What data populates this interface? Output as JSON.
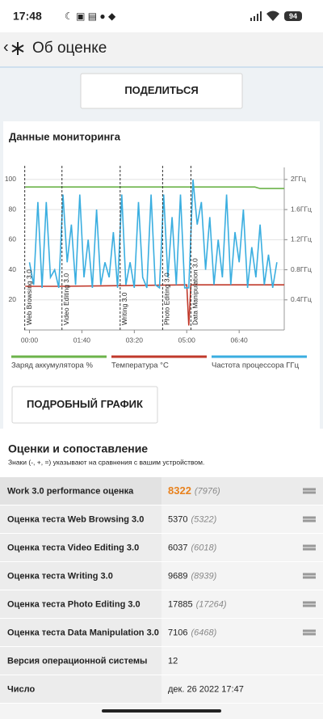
{
  "status_bar": {
    "time": "17:48",
    "battery": "94"
  },
  "header": {
    "back": "‹",
    "title": "Об оценке"
  },
  "share_button": "ПОДЕЛИТЬСЯ",
  "monitoring": {
    "title": "Данные мониторинга",
    "chart": {
      "type": "line",
      "xlim": [
        -10,
        486
      ],
      "xticks": [
        {
          "value": 0,
          "label": "00:00"
        },
        {
          "value": 100,
          "label": "01:40"
        },
        {
          "value": 200,
          "label": "03:20"
        },
        {
          "value": 300,
          "label": "05:00"
        },
        {
          "value": 400,
          "label": "06:40"
        }
      ],
      "ylim": [
        0,
        108
      ],
      "yticks": [
        20,
        40,
        60,
        80,
        100
      ],
      "y2lim": [
        0,
        2.16
      ],
      "y2ticks": [
        {
          "value": 0.4,
          "label": "0.4ГГц"
        },
        {
          "value": 0.8,
          "label": "0.8ГГц"
        },
        {
          "value": 1.2,
          "label": "1.2ГГц"
        },
        {
          "value": 1.6,
          "label": "1.6ГГц"
        },
        {
          "value": 2,
          "label": "2ГГц"
        }
      ],
      "grid": true,
      "markers": [
        {
          "x": -9,
          "label": "Web Browsing 3.0"
        },
        {
          "x": 62,
          "label": "Video Editing 3.0"
        },
        {
          "x": 173,
          "label": "Writing 3.0"
        },
        {
          "x": 254,
          "label": "Photo Editing 3.0"
        },
        {
          "x": 308,
          "label": "Data Manipulation 3.0"
        }
      ],
      "series": [
        {
          "name": "Заряд аккумулятора %",
          "color": "#6cb34a",
          "x": [
            -8,
            430,
            440,
            486
          ],
          "values": [
            95,
            95,
            94,
            94
          ]
        },
        {
          "name": "Температура °C",
          "color": "#c0392b",
          "x": [
            -8,
            60,
            300,
            304,
            308,
            486
          ],
          "values": [
            29,
            29,
            30,
            3,
            30,
            30
          ]
        },
        {
          "name": "Частота процессора ГГц",
          "color": "#3aaee0",
          "axis": "y2",
          "x": [
            0,
            8,
            16,
            24,
            32,
            40,
            48,
            56,
            64,
            72,
            80,
            88,
            96,
            104,
            112,
            120,
            128,
            136,
            144,
            152,
            160,
            168,
            176,
            184,
            192,
            200,
            208,
            216,
            224,
            232,
            240,
            248,
            256,
            264,
            272,
            280,
            288,
            296,
            304,
            312,
            320,
            328,
            336,
            344,
            352,
            360,
            368,
            376,
            384,
            392,
            400,
            408,
            416,
            424,
            432,
            440,
            448,
            456,
            464,
            472
          ],
          "values": [
            0.9,
            0.6,
            1.7,
            0.56,
            1.7,
            0.7,
            0.8,
            0.56,
            1.8,
            0.9,
            1.4,
            0.6,
            1.8,
            0.7,
            1.2,
            0.56,
            1.6,
            0.6,
            0.9,
            0.7,
            1.3,
            0.56,
            1.8,
            0.6,
            0.9,
            0.56,
            1.7,
            0.7,
            0.56,
            1.8,
            0.6,
            0.56,
            1.8,
            0.7,
            1.5,
            0.6,
            1.8,
            0.56,
            0.56,
            2.0,
            1.4,
            1.7,
            0.8,
            1.5,
            0.6,
            1.2,
            0.7,
            1.8,
            0.6,
            1.3,
            0.9,
            1.6,
            0.56,
            1.1,
            0.7,
            1.4,
            0.6,
            1.0,
            0.56,
            0.9
          ]
        }
      ]
    }
  },
  "detail_button": "ПОДРОБНЫЙ ГРАФИК",
  "scores": {
    "title": "Оценки и сопоставление",
    "note": "Знаки (-, +, =) указывают на сравнения с вашим устройством.",
    "rows": [
      {
        "label": "Work 3.0 performance оценка",
        "value": "8322",
        "compare": "(7976)"
      },
      {
        "label": "Оценка теста Web Browsing 3.0",
        "value": "5370",
        "compare": "(5322)"
      },
      {
        "label": "Оценка теста Video Editing 3.0",
        "value": "6037",
        "compare": "(6018)"
      },
      {
        "label": "Оценка теста Writing 3.0",
        "value": "9689",
        "compare": "(8939)"
      },
      {
        "label": "Оценка теста Photo Editing 3.0",
        "value": "17885",
        "compare": "(17264)"
      },
      {
        "label": "Оценка теста Data Manipulation 3.0",
        "value": "7106",
        "compare": "(6468)"
      },
      {
        "label": "Версия операционной системы",
        "value": "12"
      },
      {
        "label": "Число",
        "value": "дек. 26 2022 17:47"
      }
    ]
  }
}
